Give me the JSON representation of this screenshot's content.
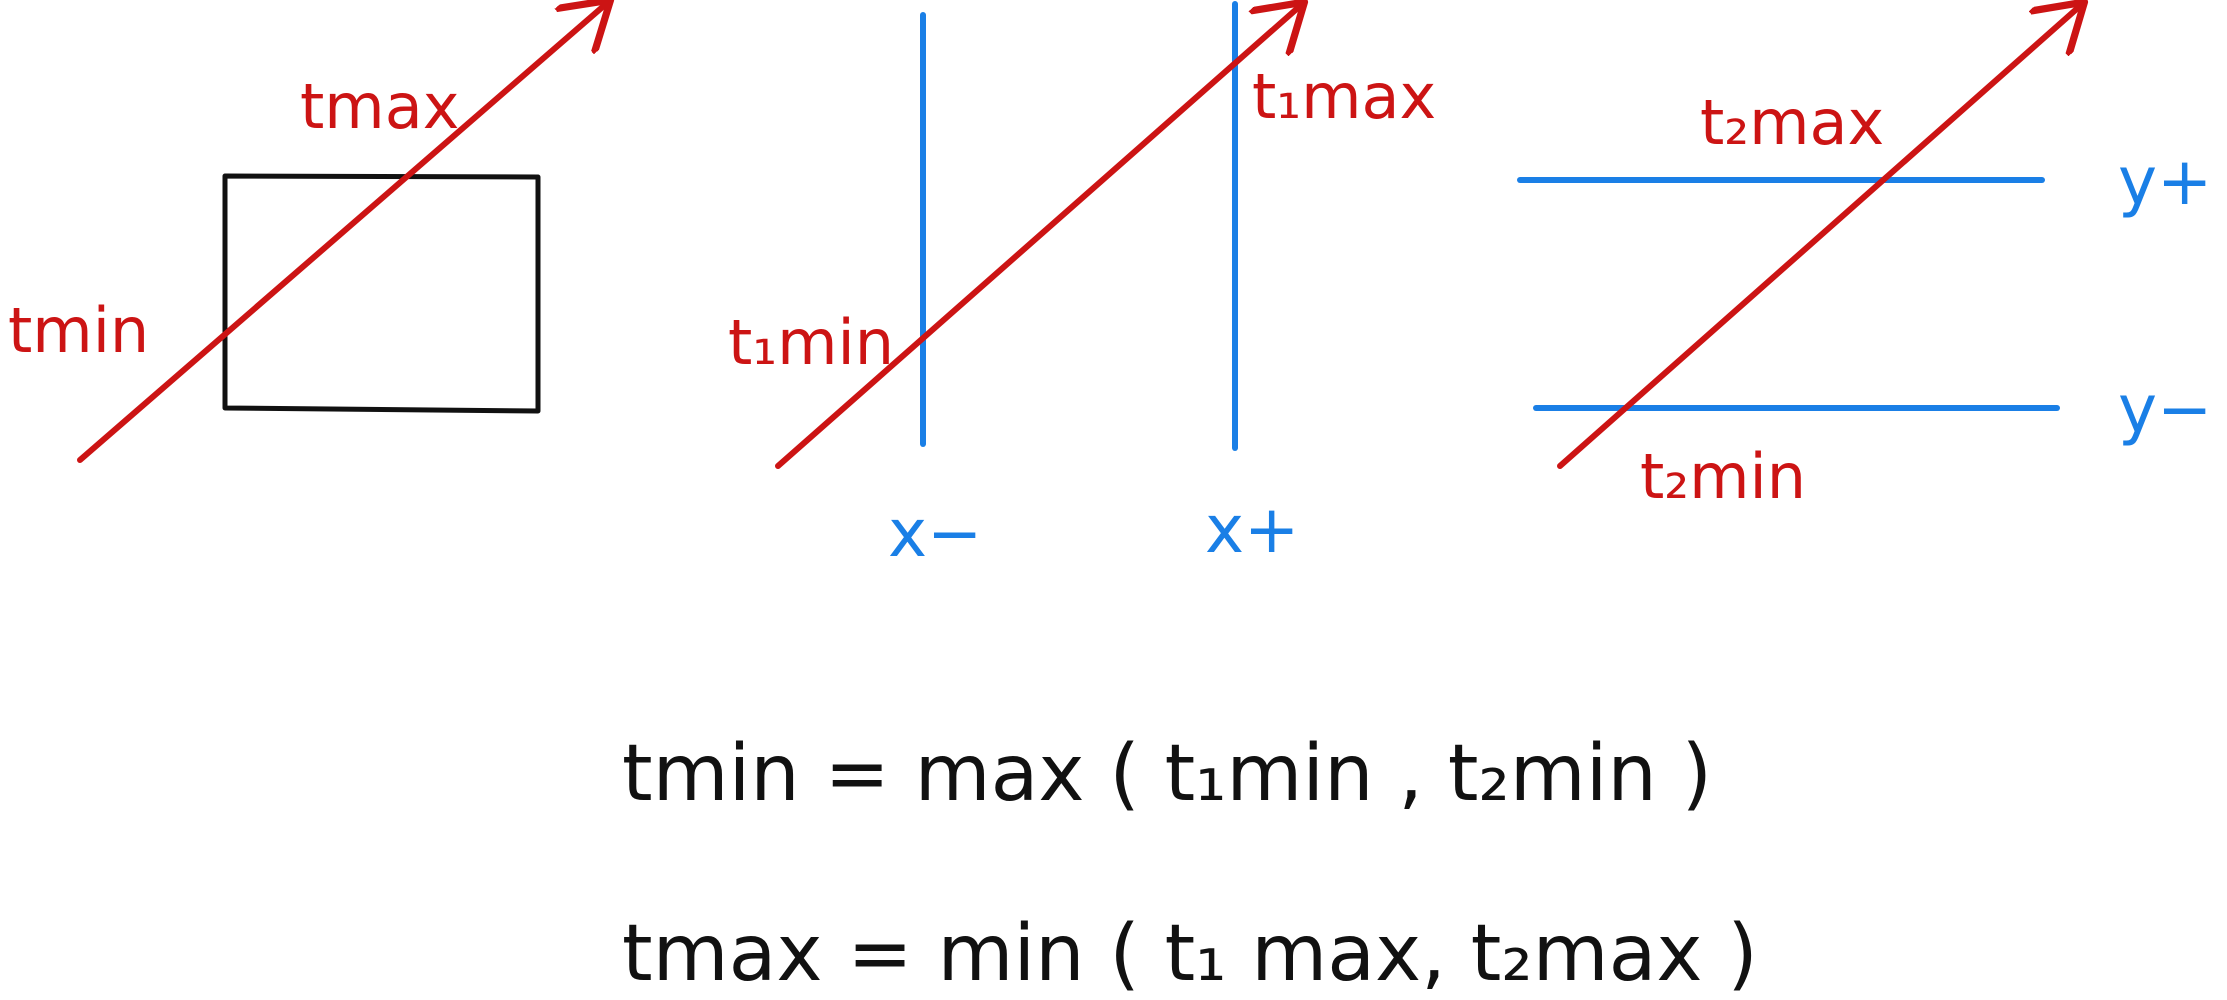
{
  "colors": {
    "ray": "#cc1414",
    "slab": "#1a7fe6",
    "box": "#111111",
    "formula": "#111111",
    "background": "#ffffff"
  },
  "panel1": {
    "tmax_label": "tmax",
    "tmin_label": "tmin"
  },
  "panel2": {
    "t1max_label": "t₁max",
    "t1min_label": "t₁min",
    "x_minus_label": "x−",
    "x_plus_label": "x+"
  },
  "panel3": {
    "t2max_label": "t₂max",
    "t2min_label": "t₂min",
    "y_plus_label": "y+",
    "y_minus_label": "y−"
  },
  "formulas": {
    "tmin_formula": "tmin = max ( t₁min ,  t₂min )",
    "tmax_formula": "tmax = min ( t₁ max,  t₂max )"
  }
}
